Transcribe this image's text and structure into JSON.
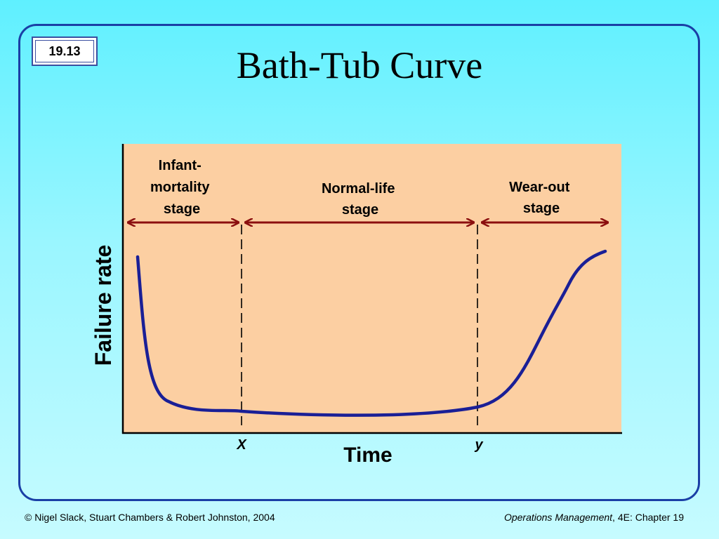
{
  "slide": {
    "number": "19.13",
    "title": "Bath-Tub Curve"
  },
  "diagram": {
    "y_axis_label": "Failure rate",
    "x_axis_label": "Time",
    "markers": [
      {
        "id": "x",
        "label": "X"
      },
      {
        "id": "y",
        "label": "y"
      }
    ],
    "stages": [
      {
        "id": "infant",
        "lines": [
          "Infant-",
          "mortality",
          "stage"
        ]
      },
      {
        "id": "normal",
        "lines": [
          "Normal-life",
          "stage"
        ]
      },
      {
        "id": "wear",
        "lines": [
          "Wear-out",
          "stage"
        ]
      }
    ],
    "colors": {
      "plot_background": "#fccfa2",
      "curve": "#1a1f96",
      "arrow": "#8b0f0f",
      "axis": "#000000"
    }
  },
  "footer": {
    "copyright": "© Nigel Slack, Stuart Chambers & Robert Johnston, 2004",
    "book_title": "Operations Management",
    "book_suffix": ", 4E: Chapter 19"
  }
}
